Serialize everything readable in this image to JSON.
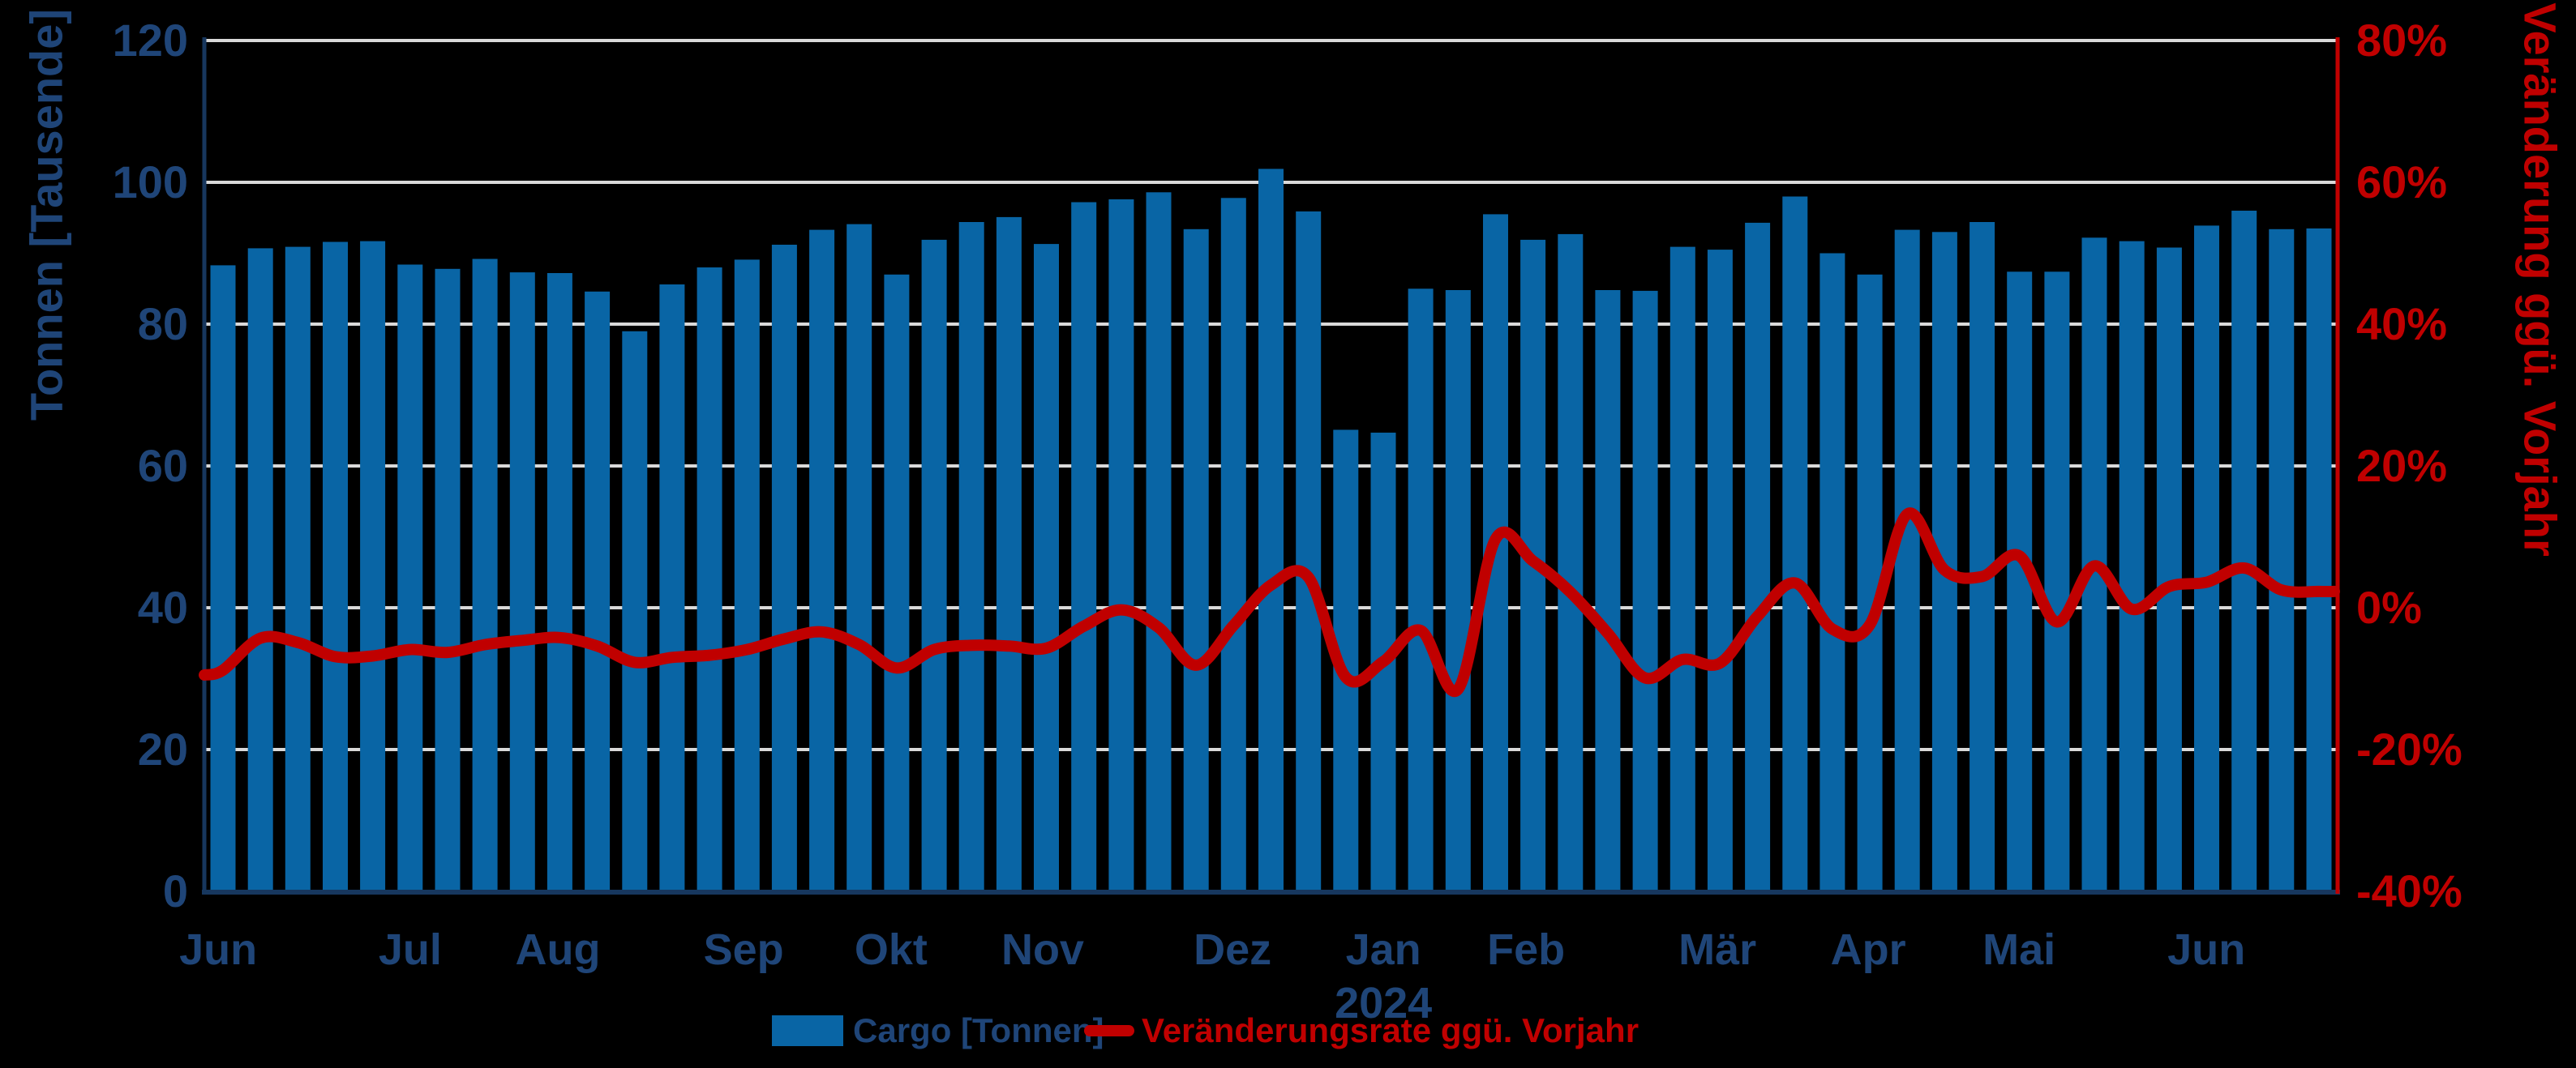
{
  "colors": {
    "background": "#000000",
    "bar": "#0965A5",
    "line": "#C00000",
    "gridline": "#D9D9D9",
    "left_axis_line": "#17375E",
    "left_text": "#1F4578",
    "right_axis_line": "#C00000",
    "right_text": "#C00000"
  },
  "legend": {
    "bar_label": "Cargo [Tonnen]",
    "line_label": "Veränderungsrate ggü. Vorjahr"
  },
  "chart_data": {
    "type": "bar+line",
    "title": "",
    "x_unit": "weeks (Jun 2023 - Jun 2024)",
    "left_axis": {
      "label": "Tonnen [Tausende]",
      "min": 0,
      "max": 120,
      "tick_step": 20,
      "ticks": [
        "0",
        "20",
        "40",
        "60",
        "80",
        "100",
        "120"
      ]
    },
    "right_axis": {
      "label": "Veränderung ggü. Vorjahr",
      "min": -40,
      "max": 80,
      "tick_step": 20,
      "unit": "%",
      "ticks": [
        "-40%",
        "-20%",
        "0%",
        "20%",
        "40%",
        "60%",
        "80%"
      ]
    },
    "grid": "horizontal",
    "legend_position": "bottom-center",
    "months": [
      {
        "label": "Jun",
        "pos": 0.0065
      },
      {
        "label": "Jul",
        "pos": 0.0965
      },
      {
        "label": "Aug",
        "pos": 0.1657
      },
      {
        "label": "Sep",
        "pos": 0.2528
      },
      {
        "label": "Okt",
        "pos": 0.3219
      },
      {
        "label": "Nov",
        "pos": 0.393
      },
      {
        "label": "Dez",
        "pos": 0.482
      },
      {
        "label": "Jan",
        "pos": 0.5527,
        "year": "2024"
      },
      {
        "label": "Feb",
        "pos": 0.6196
      },
      {
        "label": "Mär",
        "pos": 0.7093
      },
      {
        "label": "Apr",
        "pos": 0.78
      },
      {
        "label": "Mai",
        "pos": 0.8507
      },
      {
        "label": "Jun",
        "pos": 0.9385
      }
    ],
    "series": [
      {
        "name": "Cargo [Tonnen]",
        "type": "bar",
        "axis": "left",
        "color": "#0965A5",
        "values": [
          88.3,
          90.7,
          90.9,
          91.6,
          91.7,
          88.4,
          87.8,
          89.2,
          87.3,
          87.2,
          84.6,
          79.0,
          85.6,
          88.0,
          89.1,
          91.2,
          93.3,
          94.1,
          87.0,
          91.9,
          94.4,
          95.1,
          91.3,
          97.2,
          97.6,
          98.6,
          93.4,
          97.8,
          101.9,
          95.9,
          65.1,
          64.7,
          85.0,
          84.8,
          95.5,
          91.9,
          92.7,
          84.8,
          84.7,
          90.9,
          90.5,
          94.3,
          98.0,
          90.0,
          87.0,
          93.3,
          93.0,
          94.4,
          87.4,
          87.4,
          92.2,
          91.7,
          90.8,
          93.9,
          96.0,
          93.4,
          93.5
        ]
      },
      {
        "name": "Veränderungsrate ggü. Vorjahr",
        "type": "line",
        "axis": "right",
        "color": "#C00000",
        "values_pct": [
          -8.8,
          -4.3,
          -4.9,
          -6.9,
          -6.8,
          -5.9,
          -6.3,
          -5.2,
          -4.6,
          -4.2,
          -5.4,
          -7.7,
          -7.0,
          -6.7,
          -5.9,
          -4.4,
          -3.4,
          -5.2,
          -8.5,
          -5.9,
          -5.3,
          -5.4,
          -5.7,
          -2.6,
          -0.3,
          -2.8,
          -8.1,
          -2.5,
          3.2,
          4.3,
          -9.8,
          -7.6,
          -3.2,
          -11.5,
          9.7,
          6.6,
          2.2,
          -3.6,
          -9.9,
          -7.3,
          -7.8,
          -1.2,
          3.5,
          -3.0,
          -2.4,
          13.2,
          5.3,
          4.4,
          7.3,
          -2.0,
          5.9,
          -0.2,
          3.0,
          3.6,
          5.6,
          2.5,
          2.3
        ]
      }
    ]
  }
}
